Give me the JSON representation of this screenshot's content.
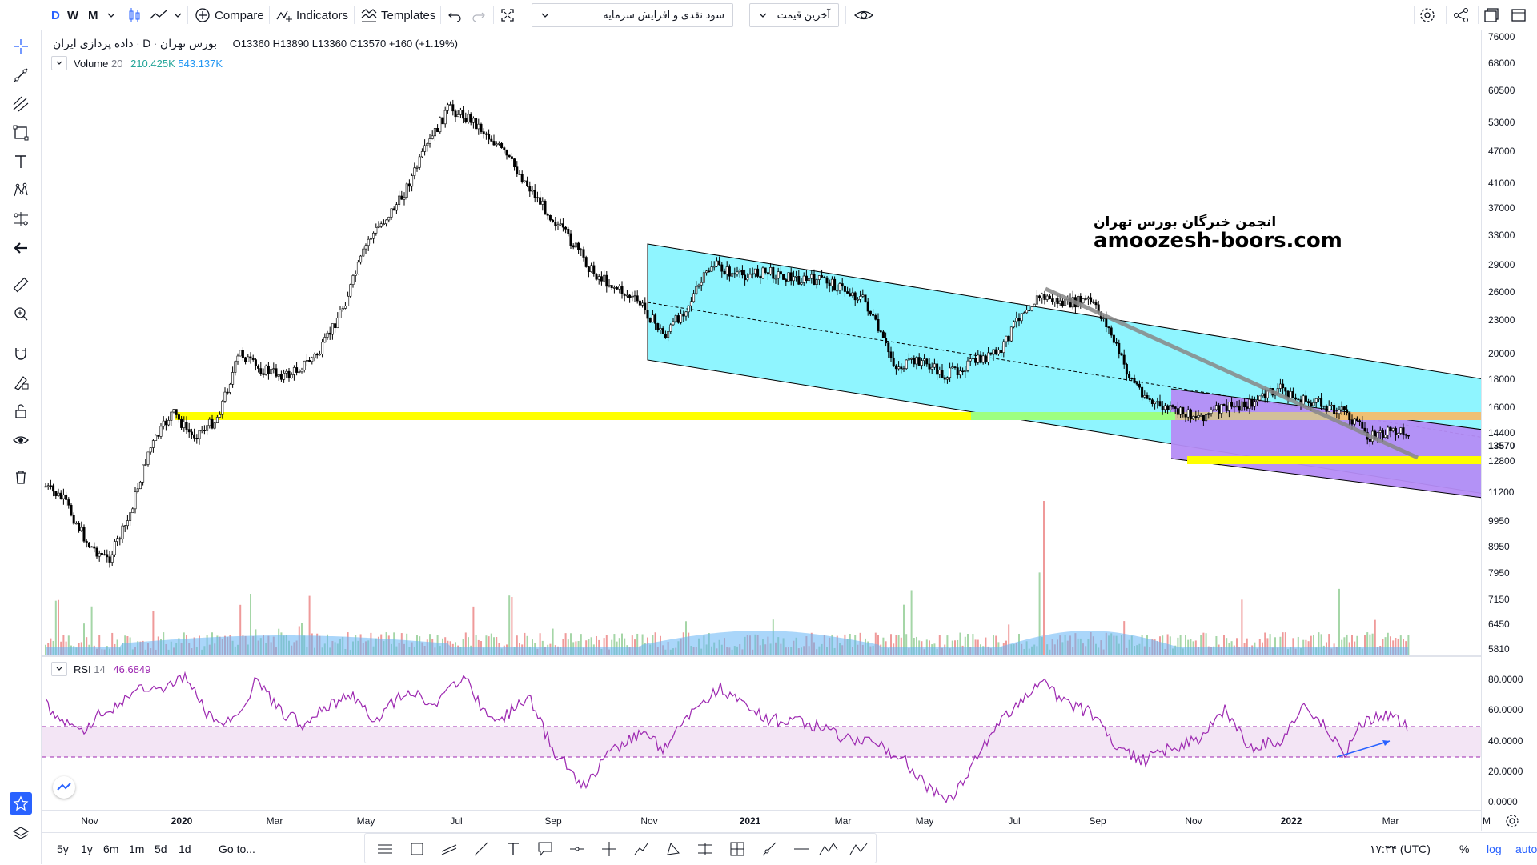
{
  "toolbar": {
    "intervals": [
      "D",
      "W",
      "M"
    ],
    "compare": "Compare",
    "indicators": "Indicators",
    "templates": "Templates",
    "symbol_select": "سود نقدی و افزایش سرمایه",
    "price_type_select": "آخرین قیمت"
  },
  "legend": {
    "symbol_name": "داده پردازی ایران",
    "exchange": "بورس تهران",
    "interval": "D",
    "open_label": "O",
    "open": "13360",
    "high_label": "H",
    "high": "13890",
    "low_label": "L",
    "low": "13360",
    "close_label": "C",
    "close": "13570",
    "change": "+160 (+1.19%)",
    "volume_label": "Volume",
    "volume_period": "20",
    "volume_value": "210.425K",
    "volume_ma": "543.137K",
    "rsi_label": "RSI",
    "rsi_period": "14",
    "rsi_value": "46.6849"
  },
  "watermark": {
    "line1": "انجمن خبرگان بورس تهران",
    "line2": "amoozesh-boors.com"
  },
  "price_axis": {
    "labels": [
      "76000",
      "68000",
      "60500",
      "53000",
      "47000",
      "41000",
      "37000",
      "33000",
      "29000",
      "26000",
      "23000",
      "20000",
      "18000",
      "16000",
      "14400",
      "12800",
      "11200",
      "9950",
      "8950",
      "7950",
      "7150",
      "6450",
      "5810"
    ],
    "current": "13570"
  },
  "rsi_axis": {
    "labels": [
      "80.0000",
      "60.0000",
      "40.0000",
      "20.0000",
      "0.0000"
    ]
  },
  "time_axis": {
    "labels": [
      "Nov",
      "2020",
      "Mar",
      "May",
      "Jul",
      "Sep",
      "Nov",
      "2021",
      "Mar",
      "May",
      "Jul",
      "Sep",
      "Nov",
      "2022",
      "Mar",
      "M"
    ]
  },
  "bottom": {
    "ranges": [
      "5y",
      "1y",
      "6m",
      "1m",
      "5d",
      "1d"
    ],
    "goto": "Go to...",
    "clock": "۱۷:۳۴ (UTC)",
    "percent": "%",
    "log": "log",
    "auto": "auto"
  },
  "colors": {
    "accent": "#2962ff",
    "channel_cyan": "#8ff5ff",
    "channel_purple": "#b58cf5",
    "support_yellow": "#ffff00",
    "rsi_line": "#9c27b0",
    "rsi_band": "#f3e5f5",
    "volume_ma": "#64b5f6"
  },
  "icons": [
    "cursor-cross-icon",
    "trend-line-icon",
    "fib-icon",
    "rectangle-icon",
    "text-icon",
    "pattern-icon",
    "prediction-icon",
    "back-arrow-icon",
    "ruler-icon",
    "zoom-icon",
    "magnet-icon",
    "lock-drawings-icon",
    "unlock-icon",
    "eye-icon",
    "trash-icon",
    "star-icon",
    "layers-icon",
    "settings-icon",
    "share-icon",
    "fullscreen-icon"
  ]
}
